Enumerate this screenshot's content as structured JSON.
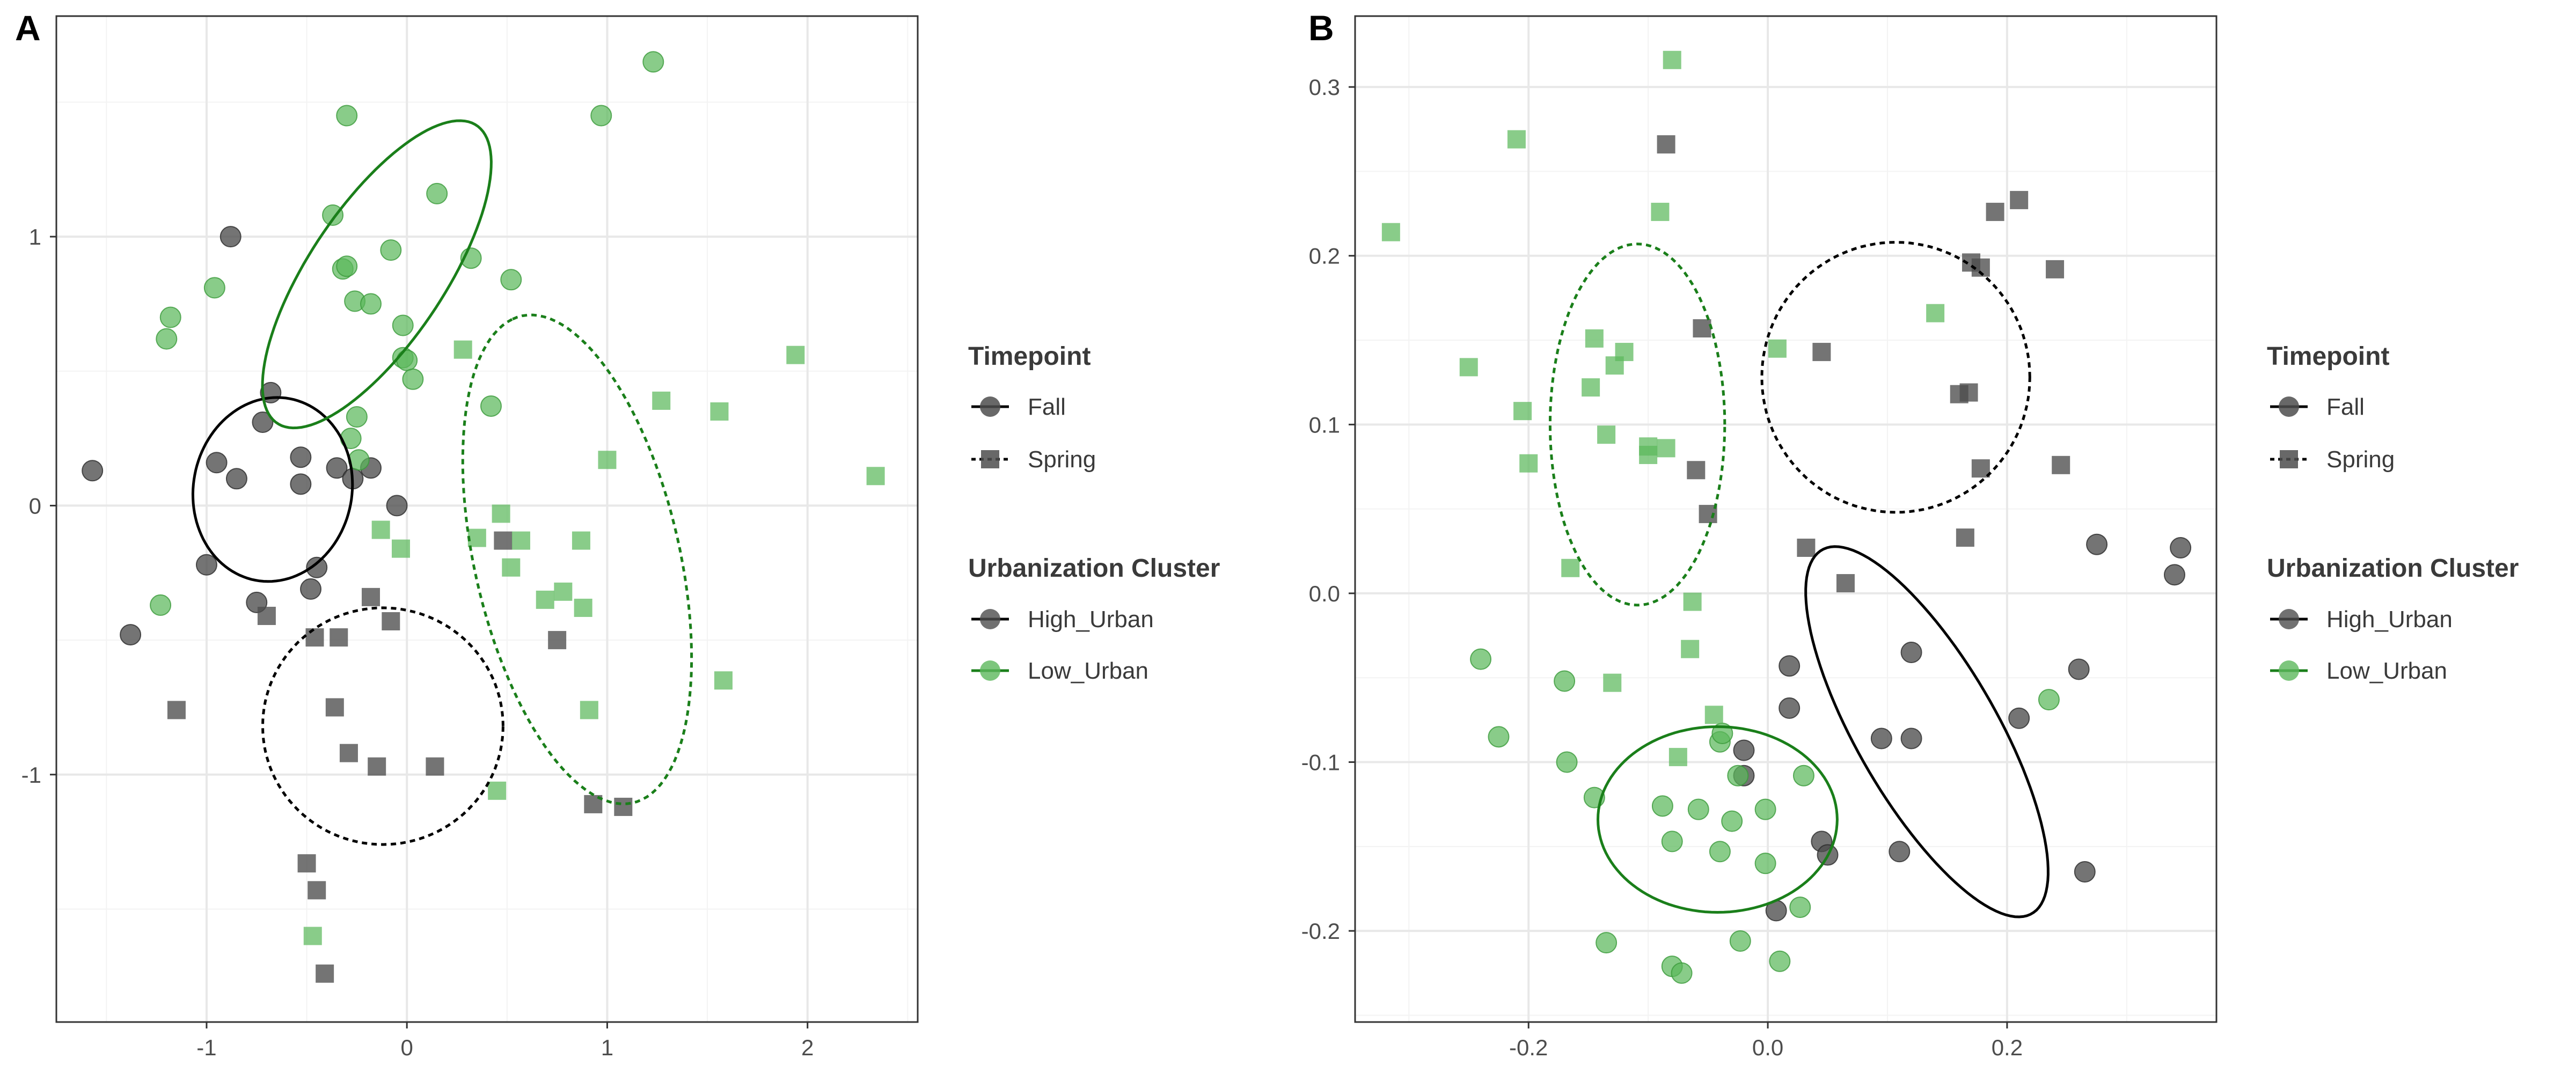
{
  "colors": {
    "high_urban": "#4d4d4d",
    "low_urban": "#5cb85c",
    "high_urban_ellipse": "#000000",
    "low_urban_ellipse": "#1a7f1a",
    "grid_major": "#e8e8e8",
    "grid_minor": "#f3f3f3",
    "panel_border": "#333333",
    "tick_label": "#4d4d4d",
    "legend_title": "#3a3a3a"
  },
  "legend": {
    "timepoint_title": "Timepoint",
    "timepoint_items": [
      "Fall",
      "Spring"
    ],
    "cluster_title": "Urbanization Cluster",
    "cluster_items": [
      "High_Urban",
      "Low_Urban"
    ]
  },
  "chart_data": [
    {
      "type": "scatter",
      "panel_label": "A",
      "title": "",
      "xlabel": "",
      "ylabel": "",
      "xlim": [
        -1.75,
        2.55
      ],
      "ylim": [
        -1.92,
        1.82
      ],
      "xticks": [
        -1,
        0,
        1,
        2
      ],
      "yticks": [
        -1,
        0,
        1
      ],
      "xtick_labels": [
        "-1",
        "0",
        "1",
        "2"
      ],
      "ytick_labels": [
        "-1",
        "0",
        "1"
      ],
      "grid": true,
      "legend_position": "right",
      "series": [
        {
          "timepoint": "Fall",
          "cluster": "High_Urban",
          "marker": "circle",
          "points": [
            [
              -1.57,
              0.13
            ],
            [
              -1.38,
              -0.48
            ],
            [
              -1.0,
              -0.22
            ],
            [
              -0.95,
              0.16
            ],
            [
              -0.88,
              1.0
            ],
            [
              -0.85,
              0.1
            ],
            [
              -0.75,
              -0.36
            ],
            [
              -0.72,
              0.31
            ],
            [
              -0.68,
              0.42
            ],
            [
              -0.53,
              0.08
            ],
            [
              -0.53,
              0.18
            ],
            [
              -0.48,
              -0.31
            ],
            [
              -0.45,
              -0.23
            ],
            [
              -0.35,
              0.14
            ],
            [
              -0.27,
              0.1
            ],
            [
              -0.18,
              0.14
            ],
            [
              -0.05,
              0.0
            ]
          ]
        },
        {
          "timepoint": "Fall",
          "cluster": "Low_Urban",
          "marker": "circle",
          "points": [
            [
              -1.23,
              -0.37
            ],
            [
              -1.2,
              0.62
            ],
            [
              -1.18,
              0.7
            ],
            [
              -0.96,
              0.81
            ],
            [
              -0.37,
              1.08
            ],
            [
              -0.32,
              0.88
            ],
            [
              -0.3,
              0.89
            ],
            [
              -0.3,
              1.45
            ],
            [
              -0.28,
              0.25
            ],
            [
              -0.26,
              0.76
            ],
            [
              -0.25,
              0.33
            ],
            [
              -0.24,
              0.17
            ],
            [
              -0.18,
              0.75
            ],
            [
              -0.08,
              0.95
            ],
            [
              -0.02,
              0.67
            ],
            [
              -0.02,
              0.55
            ],
            [
              0.0,
              0.54
            ],
            [
              0.03,
              0.47
            ],
            [
              0.15,
              1.16
            ],
            [
              0.32,
              0.92
            ],
            [
              0.42,
              0.37
            ],
            [
              0.52,
              0.84
            ],
            [
              0.97,
              1.45
            ],
            [
              1.23,
              1.65
            ]
          ]
        },
        {
          "timepoint": "Spring",
          "cluster": "High_Urban",
          "marker": "square",
          "points": [
            [
              -1.15,
              -0.76
            ],
            [
              -0.7,
              -0.41
            ],
            [
              -0.5,
              -1.33
            ],
            [
              -0.46,
              -0.49
            ],
            [
              -0.45,
              -1.43
            ],
            [
              -0.41,
              -1.74
            ],
            [
              -0.36,
              -0.75
            ],
            [
              -0.34,
              -0.49
            ],
            [
              -0.29,
              -0.92
            ],
            [
              -0.18,
              -0.34
            ],
            [
              -0.15,
              -0.97
            ],
            [
              -0.08,
              -0.43
            ],
            [
              0.14,
              -0.97
            ],
            [
              0.48,
              -0.13
            ],
            [
              0.75,
              -0.5
            ],
            [
              0.93,
              -1.11
            ],
            [
              1.08,
              -1.12
            ]
          ]
        },
        {
          "timepoint": "Spring",
          "cluster": "Low_Urban",
          "marker": "square",
          "points": [
            [
              -0.47,
              -1.6
            ],
            [
              -0.13,
              -0.09
            ],
            [
              -0.03,
              -0.16
            ],
            [
              0.28,
              0.58
            ],
            [
              0.35,
              -0.12
            ],
            [
              0.45,
              -1.06
            ],
            [
              0.47,
              -0.03
            ],
            [
              0.52,
              -0.23
            ],
            [
              0.57,
              -0.13
            ],
            [
              0.69,
              -0.35
            ],
            [
              0.78,
              -0.32
            ],
            [
              0.87,
              -0.13
            ],
            [
              0.88,
              -0.38
            ],
            [
              0.91,
              -0.76
            ],
            [
              1.0,
              0.17
            ],
            [
              1.27,
              0.39
            ],
            [
              1.56,
              0.35
            ],
            [
              1.58,
              -0.65
            ],
            [
              1.94,
              0.56
            ],
            [
              2.34,
              0.11
            ]
          ]
        }
      ],
      "ellipses": [
        {
          "cluster": "High_Urban",
          "timepoint": "Fall",
          "line": "solid",
          "center": [
            -0.67,
            0.06
          ],
          "rx": 0.4,
          "ry": 0.34,
          "angle_deg": 10
        },
        {
          "cluster": "Low_Urban",
          "timepoint": "Fall",
          "line": "solid",
          "center": [
            -0.15,
            0.86
          ],
          "rx": 0.75,
          "ry": 0.3,
          "angle_deg": 45
        },
        {
          "cluster": "High_Urban",
          "timepoint": "Spring",
          "line": "dashed",
          "center": [
            -0.12,
            -0.82
          ],
          "rx": 0.6,
          "ry": 0.44,
          "angle_deg": 0
        },
        {
          "cluster": "Low_Urban",
          "timepoint": "Spring",
          "line": "dashed",
          "center": [
            0.85,
            -0.2
          ],
          "rx": 0.95,
          "ry": 0.5,
          "angle_deg": 110
        }
      ]
    },
    {
      "type": "scatter",
      "panel_label": "B",
      "title": "",
      "xlabel": "",
      "ylabel": "",
      "xlim": [
        -0.345,
        0.375
      ],
      "ylim": [
        -0.254,
        0.342
      ],
      "xticks": [
        -0.2,
        0.0,
        0.2
      ],
      "yticks": [
        -0.2,
        -0.1,
        0.0,
        0.1,
        0.2,
        0.3
      ],
      "xtick_labels": [
        "-0.2",
        "0.0",
        "0.2"
      ],
      "ytick_labels": [
        "-0.2",
        "-0.1",
        "0.0",
        "0.1",
        "0.2",
        "0.3"
      ],
      "grid": true,
      "legend_position": "right",
      "series": [
        {
          "timepoint": "Fall",
          "cluster": "High_Urban",
          "marker": "circle",
          "points": [
            [
              -0.02,
              -0.093
            ],
            [
              -0.02,
              -0.108
            ],
            [
              0.007,
              -0.188
            ],
            [
              0.018,
              -0.068
            ],
            [
              0.018,
              -0.043
            ],
            [
              0.045,
              -0.147
            ],
            [
              0.05,
              -0.155
            ],
            [
              0.095,
              -0.086
            ],
            [
              0.11,
              -0.153
            ],
            [
              0.12,
              -0.086
            ],
            [
              0.12,
              -0.035
            ],
            [
              0.21,
              -0.074
            ],
            [
              0.26,
              -0.045
            ],
            [
              0.265,
              -0.165
            ],
            [
              0.275,
              0.029
            ],
            [
              0.34,
              0.011
            ],
            [
              0.345,
              0.027
            ]
          ]
        },
        {
          "timepoint": "Fall",
          "cluster": "Low_Urban",
          "marker": "circle",
          "points": [
            [
              -0.24,
              -0.039
            ],
            [
              -0.225,
              -0.085
            ],
            [
              -0.17,
              -0.052
            ],
            [
              -0.168,
              -0.1
            ],
            [
              -0.145,
              -0.121
            ],
            [
              -0.135,
              -0.207
            ],
            [
              -0.088,
              -0.126
            ],
            [
              -0.08,
              -0.147
            ],
            [
              -0.08,
              -0.221
            ],
            [
              -0.072,
              -0.225
            ],
            [
              -0.058,
              -0.128
            ],
            [
              -0.04,
              -0.153
            ],
            [
              -0.04,
              -0.088
            ],
            [
              -0.038,
              -0.083
            ],
            [
              -0.03,
              -0.135
            ],
            [
              -0.025,
              -0.108
            ],
            [
              -0.023,
              -0.206
            ],
            [
              -0.002,
              -0.128
            ],
            [
              -0.002,
              -0.16
            ],
            [
              0.01,
              -0.218
            ],
            [
              0.027,
              -0.186
            ],
            [
              0.03,
              -0.108
            ],
            [
              0.235,
              -0.063
            ]
          ]
        },
        {
          "timepoint": "Spring",
          "cluster": "High_Urban",
          "marker": "square",
          "points": [
            [
              -0.085,
              0.266
            ],
            [
              -0.06,
              0.073
            ],
            [
              -0.055,
              0.157
            ],
            [
              -0.05,
              0.047
            ],
            [
              0.032,
              0.027
            ],
            [
              0.045,
              0.143
            ],
            [
              0.065,
              0.006
            ],
            [
              0.16,
              0.118
            ],
            [
              0.165,
              0.033
            ],
            [
              0.168,
              0.119
            ],
            [
              0.17,
              0.196
            ],
            [
              0.178,
              0.193
            ],
            [
              0.178,
              0.074
            ],
            [
              0.19,
              0.226
            ],
            [
              0.21,
              0.233
            ],
            [
              0.24,
              0.192
            ],
            [
              0.245,
              0.076
            ]
          ]
        },
        {
          "timepoint": "Spring",
          "cluster": "Low_Urban",
          "marker": "square",
          "points": [
            [
              -0.315,
              0.214
            ],
            [
              -0.25,
              0.134
            ],
            [
              -0.21,
              0.269
            ],
            [
              -0.205,
              0.108
            ],
            [
              -0.2,
              0.077
            ],
            [
              -0.165,
              0.015
            ],
            [
              -0.148,
              0.122
            ],
            [
              -0.145,
              0.151
            ],
            [
              -0.135,
              0.094
            ],
            [
              -0.13,
              -0.053
            ],
            [
              -0.128,
              0.135
            ],
            [
              -0.12,
              0.143
            ],
            [
              -0.1,
              0.087
            ],
            [
              -0.1,
              0.082
            ],
            [
              -0.09,
              0.226
            ],
            [
              -0.085,
              0.086
            ],
            [
              -0.08,
              0.316
            ],
            [
              -0.075,
              -0.097
            ],
            [
              -0.065,
              -0.033
            ],
            [
              -0.063,
              -0.005
            ],
            [
              -0.045,
              -0.072
            ],
            [
              0.008,
              0.145
            ],
            [
              0.14,
              0.166
            ]
          ]
        }
      ],
      "ellipses": [
        {
          "cluster": "High_Urban",
          "timepoint": "Fall",
          "line": "solid",
          "center": [
            0.133,
            -0.082
          ],
          "rx": 0.14,
          "ry": 0.052,
          "angle_deg": 132
        },
        {
          "cluster": "Low_Urban",
          "timepoint": "Fall",
          "line": "solid",
          "center": [
            -0.042,
            -0.134
          ],
          "rx": 0.1,
          "ry": 0.055,
          "angle_deg": 0
        },
        {
          "cluster": "High_Urban",
          "timepoint": "Spring",
          "line": "dashed",
          "center": [
            0.107,
            0.128
          ],
          "rx": 0.112,
          "ry": 0.08,
          "angle_deg": 0
        },
        {
          "cluster": "Low_Urban",
          "timepoint": "Spring",
          "line": "dashed",
          "center": [
            -0.109,
            0.1
          ],
          "rx": 0.073,
          "ry": 0.107,
          "angle_deg": 0
        }
      ]
    }
  ]
}
